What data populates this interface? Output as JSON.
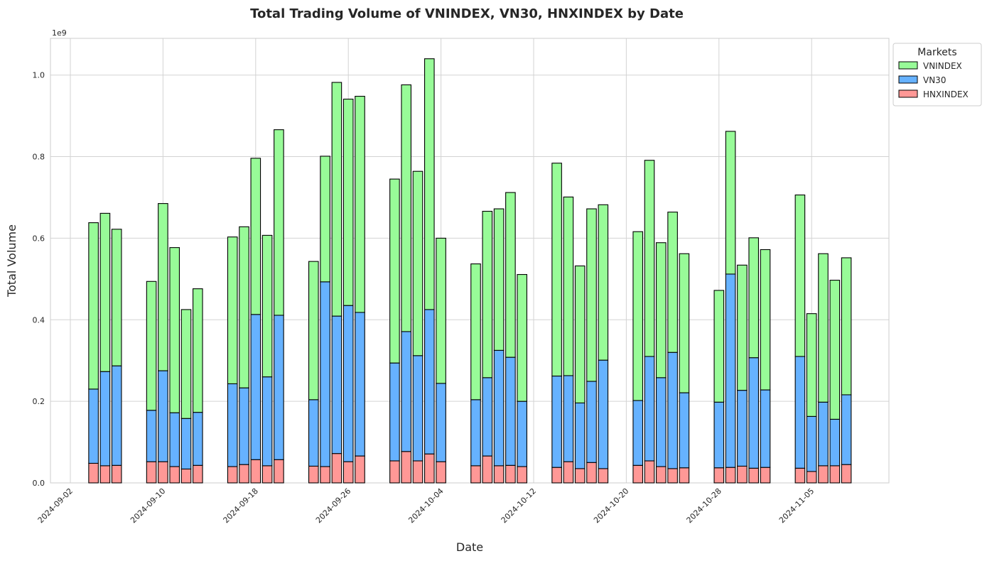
{
  "chart_data": {
    "type": "bar",
    "stacked": true,
    "title": "Total Trading Volume of VNINDEX, VN30, HNXINDEX by Date",
    "xlabel": "Date",
    "ylabel": "Total Volume",
    "y_offset_label": "1e9",
    "ylim": [
      0,
      1.09
    ],
    "y_ticks": [
      "0.0",
      "0.2",
      "0.4",
      "0.6",
      "0.8",
      "1.0"
    ],
    "x_tick_labels": [
      "2024-09-02",
      "2024-09-10",
      "2024-09-18",
      "2024-09-26",
      "2024-10-04",
      "2024-10-12",
      "2024-10-20",
      "2024-10-28",
      "2024-11-05"
    ],
    "grid": true,
    "legend": {
      "title": "Markets",
      "position": "outside-top-right"
    },
    "categories": [
      "2024-09-04",
      "2024-09-05",
      "2024-09-06",
      "2024-09-09",
      "2024-09-10",
      "2024-09-11",
      "2024-09-12",
      "2024-09-13",
      "2024-09-16",
      "2024-09-17",
      "2024-09-18",
      "2024-09-19",
      "2024-09-20",
      "2024-09-23",
      "2024-09-24",
      "2024-09-25",
      "2024-09-26",
      "2024-09-27",
      "2024-09-30",
      "2024-10-01",
      "2024-10-02",
      "2024-10-03",
      "2024-10-04",
      "2024-10-07",
      "2024-10-08",
      "2024-10-09",
      "2024-10-10",
      "2024-10-11",
      "2024-10-14",
      "2024-10-15",
      "2024-10-16",
      "2024-10-17",
      "2024-10-18",
      "2024-10-21",
      "2024-10-22",
      "2024-10-23",
      "2024-10-24",
      "2024-10-25",
      "2024-10-28",
      "2024-10-29",
      "2024-10-30",
      "2024-10-31",
      "2024-11-01",
      "2024-11-04",
      "2024-11-05",
      "2024-11-06",
      "2024-11-07",
      "2024-11-08"
    ],
    "series": [
      {
        "name": "HNXINDEX",
        "color": "#ff9896",
        "values": [
          0.048,
          0.042,
          0.043,
          0.052,
          0.052,
          0.04,
          0.034,
          0.043,
          0.04,
          0.045,
          0.057,
          0.042,
          0.057,
          0.041,
          0.04,
          0.072,
          0.052,
          0.066,
          0.054,
          0.077,
          0.054,
          0.071,
          0.052,
          0.042,
          0.066,
          0.042,
          0.043,
          0.04,
          0.038,
          0.052,
          0.035,
          0.05,
          0.035,
          0.043,
          0.054,
          0.04,
          0.035,
          0.037,
          0.037,
          0.038,
          0.041,
          0.036,
          0.038,
          0.036,
          0.028,
          0.042,
          0.042,
          0.045
        ]
      },
      {
        "name": "VN30",
        "color": "#66b2ff",
        "values": [
          0.182,
          0.231,
          0.244,
          0.126,
          0.223,
          0.132,
          0.124,
          0.13,
          0.203,
          0.188,
          0.356,
          0.218,
          0.354,
          0.163,
          0.453,
          0.337,
          0.383,
          0.352,
          0.24,
          0.294,
          0.258,
          0.354,
          0.192,
          0.162,
          0.192,
          0.283,
          0.265,
          0.16,
          0.224,
          0.211,
          0.161,
          0.199,
          0.266,
          0.159,
          0.256,
          0.218,
          0.285,
          0.184,
          0.161,
          0.474,
          0.186,
          0.271,
          0.19,
          0.274,
          0.135,
          0.156,
          0.114,
          0.171
        ]
      },
      {
        "name": "VNINDEX",
        "color": "#98fb98",
        "values": [
          0.408,
          0.388,
          0.335,
          0.316,
          0.41,
          0.405,
          0.267,
          0.303,
          0.36,
          0.395,
          0.383,
          0.347,
          0.455,
          0.339,
          0.308,
          0.573,
          0.506,
          0.53,
          0.451,
          0.605,
          0.452,
          0.615,
          0.356,
          0.333,
          0.408,
          0.347,
          0.404,
          0.311,
          0.522,
          0.438,
          0.336,
          0.423,
          0.381,
          0.414,
          0.481,
          0.331,
          0.344,
          0.341,
          0.274,
          0.35,
          0.307,
          0.294,
          0.344,
          0.396,
          0.252,
          0.364,
          0.341,
          0.336
        ]
      }
    ]
  }
}
